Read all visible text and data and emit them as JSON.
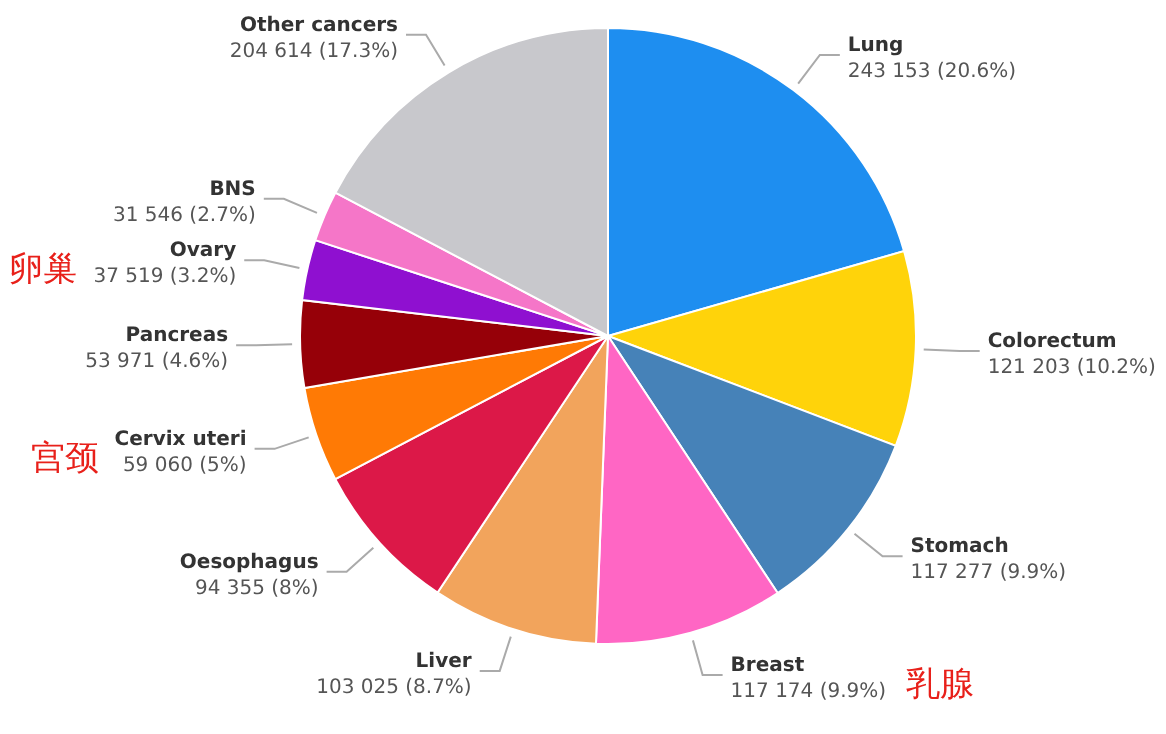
{
  "chart_data": {
    "type": "pie",
    "categories": [
      "Lung",
      "Colorectum",
      "Stomach",
      "Breast",
      "Liver",
      "Oesophagus",
      "Cervix uteri",
      "Pancreas",
      "Ovary",
      "BNS",
      "Other cancers"
    ],
    "values": [
      243153,
      121203,
      117277,
      117174,
      103025,
      94355,
      59060,
      53971,
      37519,
      31546,
      204614
    ],
    "value_labels": [
      "243 153 (20.6%)",
      "121 203 (10.2%)",
      "117 277 (9.9%)",
      "117 174 (9.9%)",
      "103 025 (8.7%)",
      "94 355 (8%)",
      "59 060 (5%)",
      "53 971 (4.6%)",
      "37 519 (3.2%)",
      "31 546 (2.7%)",
      "204 614 (17.3%)"
    ],
    "colors": [
      "#1e8ef0",
      "#ffd30a",
      "#4682b8",
      "#ff66c4",
      "#f2a45c",
      "#dc1848",
      "#ff7a05",
      "#960008",
      "#8f10d0",
      "#f576c8",
      "#c8c8cc"
    ],
    "annotations": [
      {
        "text": "卵巢",
        "x": "Ovary"
      },
      {
        "text": "宫颈",
        "x": "Cervix uteri"
      },
      {
        "text": "乳腺",
        "x": "Breast"
      }
    ]
  }
}
